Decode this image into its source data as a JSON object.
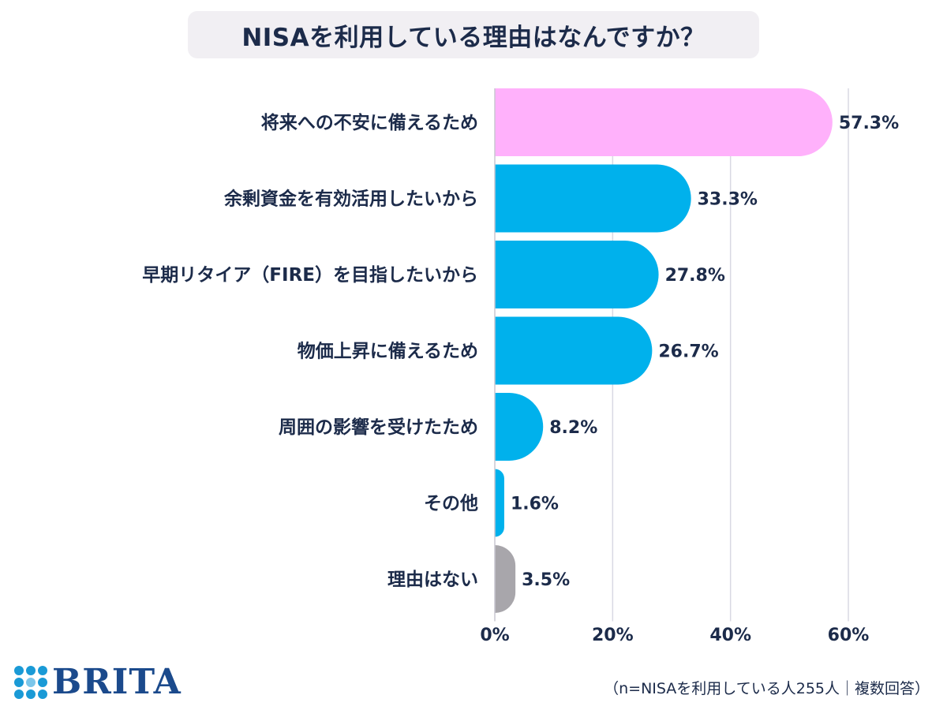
{
  "title": "NISAを利用している理由はなんですか？",
  "note": "（n=NISAを利用している人255人｜複数回答）",
  "logo": {
    "text": "BRITA",
    "icon": "dots-grid-icon"
  },
  "colors": {
    "highlight": "#ffb1fb",
    "primary": "#00b1ec",
    "muted": "#a8a6ab",
    "text": "#1c2b4a",
    "grid": "#d9d9e3"
  },
  "chart_data": {
    "type": "bar",
    "orientation": "horizontal",
    "title": "NISAを利用している理由はなんですか？",
    "categories": [
      "将来への不安に備えるため",
      "余剰資金を有効活用したいから",
      "早期リタイア（FIRE）を目指したいから",
      "物価上昇に備えるため",
      "周囲の影響を受けたため",
      "その他",
      "理由はない"
    ],
    "values": [
      57.3,
      33.3,
      27.8,
      26.7,
      8.2,
      1.6,
      3.5
    ],
    "value_labels": [
      "57.3%",
      "33.3%",
      "27.8%",
      "26.7%",
      "8.2%",
      "1.6%",
      "3.5%"
    ],
    "bar_colors": [
      "#ffb1fb",
      "#00b1ec",
      "#00b1ec",
      "#00b1ec",
      "#00b1ec",
      "#00b1ec",
      "#a8a6ab"
    ],
    "x_ticks": [
      0,
      20,
      40,
      60
    ],
    "x_tick_labels": [
      "0%",
      "20%",
      "40%",
      "60%"
    ],
    "xlim": [
      0,
      60
    ],
    "grid": true,
    "legend": "none"
  }
}
